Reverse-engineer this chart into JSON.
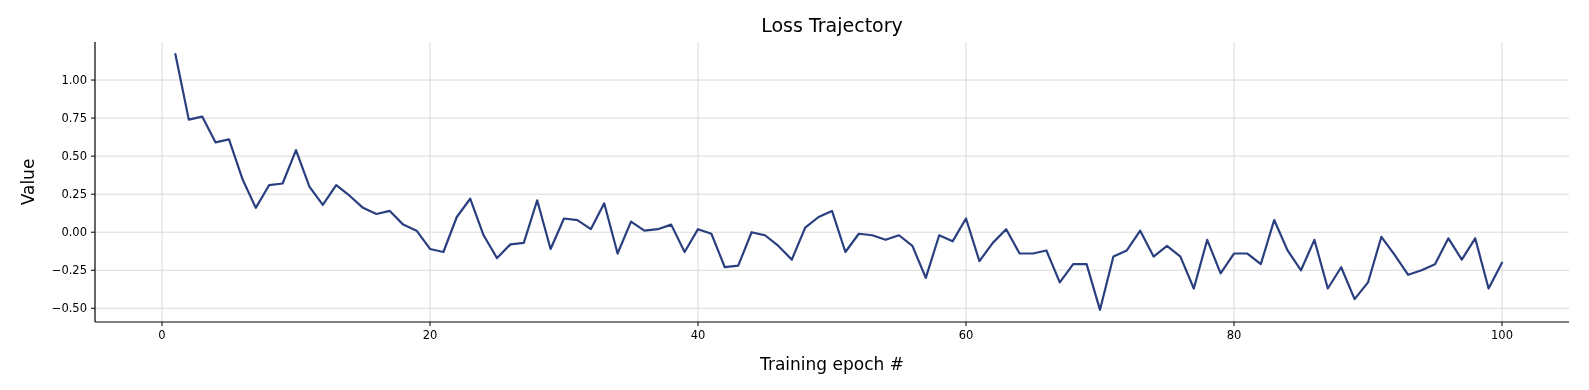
{
  "chart_data": {
    "type": "line",
    "title": "Loss Trajectory",
    "xlabel": "Training epoch #",
    "ylabel": "Value",
    "x": [
      1,
      2,
      3,
      4,
      5,
      6,
      7,
      8,
      9,
      10,
      11,
      12,
      13,
      14,
      15,
      16,
      17,
      18,
      19,
      20,
      21,
      22,
      23,
      24,
      25,
      26,
      27,
      28,
      29,
      30,
      31,
      32,
      33,
      34,
      35,
      36,
      37,
      38,
      39,
      40,
      41,
      42,
      43,
      44,
      45,
      46,
      47,
      48,
      49,
      50,
      51,
      52,
      53,
      54,
      55,
      56,
      57,
      58,
      59,
      60,
      61,
      62,
      63,
      64,
      65,
      66,
      67,
      68,
      69,
      70,
      71,
      72,
      73,
      74,
      75,
      76,
      77,
      78,
      79,
      80,
      81,
      82,
      83,
      84,
      85,
      86,
      87,
      88,
      89,
      90,
      91,
      92,
      93,
      94,
      95,
      96,
      97,
      98,
      99,
      100
    ],
    "series": [
      {
        "color": "#2a3f7f",
        "values": [
          1.17,
          0.74,
          0.76,
          0.59,
          0.61,
          0.35,
          0.16,
          0.31,
          0.32,
          0.54,
          0.3,
          0.18,
          0.31,
          0.24,
          0.16,
          0.12,
          0.14,
          0.05,
          0.01,
          -0.11,
          -0.13,
          0.1,
          0.22,
          -0.02,
          -0.17,
          -0.08,
          -0.07,
          0.21,
          -0.11,
          0.09,
          0.08,
          0.02,
          0.19,
          -0.14,
          0.07,
          0.01,
          0.02,
          0.05,
          -0.13,
          0.02,
          -0.01,
          -0.23,
          -0.22,
          0.0,
          -0.02,
          -0.09,
          -0.18,
          0.03,
          0.1,
          0.14,
          -0.13,
          -0.01,
          -0.02,
          -0.05,
          -0.02,
          -0.09,
          -0.3,
          -0.02,
          -0.06,
          0.09,
          -0.19,
          -0.07,
          0.02,
          -0.14,
          -0.14,
          -0.12,
          -0.33,
          -0.21,
          -0.21,
          -0.51,
          -0.16,
          -0.12,
          0.01,
          -0.16,
          -0.09,
          -0.16,
          -0.37,
          -0.05,
          -0.27,
          -0.14,
          -0.14,
          -0.21,
          0.08,
          -0.12,
          -0.25,
          -0.05,
          -0.37,
          -0.23,
          -0.44,
          -0.33,
          -0.03,
          -0.15,
          -0.28,
          -0.25,
          -0.21,
          -0.04,
          -0.18,
          -0.04,
          -0.37,
          -0.2
        ]
      }
    ],
    "xlim": [
      -5,
      105
    ],
    "xticks": [
      0,
      20,
      40,
      60,
      80,
      100
    ],
    "ylim": [
      -0.59,
      1.25
    ],
    "yticks": [
      {
        "value": -0.5,
        "label": "−0.50"
      },
      {
        "value": -0.25,
        "label": "−0.25"
      },
      {
        "value": 0,
        "label": "0.00"
      },
      {
        "value": 0.25,
        "label": "0.25"
      },
      {
        "value": 0.5,
        "label": "0.50"
      },
      {
        "value": 0.75,
        "label": "0.75"
      },
      {
        "value": 1,
        "label": "1.00"
      }
    ],
    "grid": true,
    "line_style": "solid",
    "marker": "none"
  }
}
